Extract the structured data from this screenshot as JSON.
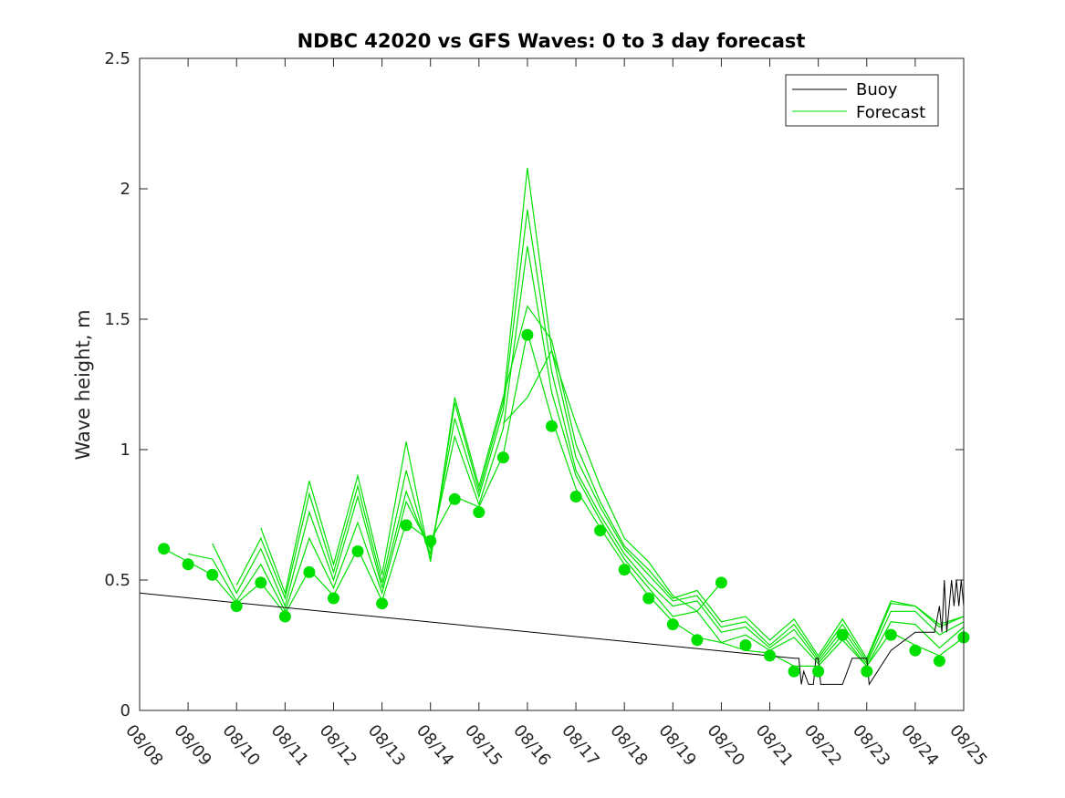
{
  "chart_data": {
    "type": "line",
    "title": "NDBC 42020 vs GFS Waves: 0 to 3 day forecast",
    "xlabel": "",
    "ylabel": "Wave height, m",
    "x_unit": "days since 08/08",
    "xlim": [
      0,
      17
    ],
    "ylim": [
      0,
      2.5
    ],
    "xtick_labels": [
      "08/08",
      "08/09",
      "08/10",
      "08/11",
      "08/12",
      "08/13",
      "08/14",
      "08/15",
      "08/16",
      "08/17",
      "08/18",
      "08/19",
      "08/20",
      "08/21",
      "08/22",
      "08/23",
      "08/24",
      "08/25"
    ],
    "ytick_values": [
      0,
      0.5,
      1,
      1.5,
      2,
      2.5
    ],
    "ytick_labels": [
      "0",
      "0.5",
      "1",
      "1.5",
      "2",
      "2.5"
    ],
    "legend": {
      "position": "top-right",
      "entries": [
        "Buoy",
        "Forecast"
      ]
    },
    "colors": {
      "buoy": "#000000",
      "forecast": "#00e000",
      "axis": "#262626"
    },
    "buoy": {
      "name": "Buoy",
      "x": [
        0,
        13.5,
        13.6,
        13.65,
        13.7,
        13.8,
        13.9,
        13.95,
        14.0,
        14.05,
        14.1,
        14.3,
        14.5,
        14.7,
        14.9,
        15.0,
        15.05,
        15.5,
        16.0,
        16.4,
        16.5,
        16.55,
        16.6,
        16.65,
        16.7,
        16.75,
        16.8,
        16.85,
        16.9,
        16.95,
        17.0
      ],
      "y": [
        0.45,
        0.2,
        0.2,
        0.1,
        0.15,
        0.1,
        0.1,
        0.2,
        0.2,
        0.1,
        0.1,
        0.1,
        0.1,
        0.2,
        0.2,
        0.2,
        0.1,
        0.23,
        0.3,
        0.3,
        0.4,
        0.3,
        0.5,
        0.3,
        0.4,
        0.5,
        0.4,
        0.5,
        0.4,
        0.5,
        0.4
      ]
    },
    "forecast_series": [
      {
        "name": "Forecast run 1",
        "x": [
          0.5,
          1.0,
          1.5,
          2.0,
          2.5,
          3.0,
          3.5,
          4.0,
          4.5,
          5.0,
          5.5,
          6.0,
          6.5,
          7.0,
          7.5,
          8.0,
          8.5,
          9.0,
          9.5,
          10.0,
          10.5,
          11.0,
          11.5,
          12.0,
          12.5,
          13.0,
          13.5,
          14.0,
          14.5,
          15.0,
          15.5,
          16.0,
          16.5,
          17.0
        ],
        "y": [
          0.62,
          0.57,
          0.52,
          0.41,
          0.49,
          0.37,
          0.54,
          0.44,
          0.62,
          0.42,
          0.72,
          0.65,
          0.82,
          0.78,
          0.98,
          1.45,
          1.12,
          0.85,
          0.7,
          0.56,
          0.44,
          0.34,
          0.28,
          0.26,
          0.23,
          0.22,
          0.17,
          0.17,
          0.27,
          0.17,
          0.3,
          0.25,
          0.21,
          0.28
        ]
      },
      {
        "name": "Forecast run 2",
        "x": [
          1.0,
          1.5,
          2.0,
          2.5,
          3.0,
          3.5,
          4.0,
          4.5,
          5.0,
          5.5,
          6.0,
          6.5,
          7.0,
          7.5,
          8.0,
          8.5,
          9.0,
          9.5,
          10.0,
          10.5,
          11.0,
          11.5,
          12.0,
          12.5,
          13.0,
          13.5,
          14.0,
          14.5,
          15.0,
          15.5,
          16.0,
          16.5,
          17.0
        ],
        "y": [
          0.6,
          0.58,
          0.42,
          0.56,
          0.38,
          0.66,
          0.47,
          0.72,
          0.45,
          0.8,
          0.62,
          1.05,
          0.79,
          1.08,
          1.78,
          1.22,
          0.9,
          0.73,
          0.58,
          0.47,
          0.36,
          0.38,
          0.26,
          0.29,
          0.23,
          0.28,
          0.18,
          0.29,
          0.17,
          0.34,
          0.33,
          0.24,
          0.32
        ]
      },
      {
        "name": "Forecast run 3",
        "x": [
          1.5,
          2.0,
          2.5,
          3.0,
          3.5,
          4.0,
          4.5,
          5.0,
          5.5,
          6.0,
          6.5,
          7.0,
          7.5,
          8.0,
          8.5,
          9.0,
          9.5,
          10.0,
          10.5,
          11.0,
          11.5,
          12.0,
          12.5,
          13.0,
          13.5,
          14.0,
          14.5,
          15.0,
          15.5,
          16.0,
          16.5,
          17.0
        ],
        "y": [
          0.64,
          0.45,
          0.62,
          0.4,
          0.76,
          0.5,
          0.82,
          0.47,
          0.84,
          0.6,
          1.12,
          0.82,
          1.15,
          1.92,
          1.3,
          0.92,
          0.75,
          0.6,
          0.49,
          0.4,
          0.42,
          0.3,
          0.32,
          0.24,
          0.31,
          0.19,
          0.31,
          0.18,
          0.38,
          0.38,
          0.29,
          0.34
        ]
      },
      {
        "name": "Forecast run 4",
        "x": [
          2.0,
          2.5,
          3.0,
          3.5,
          4.0,
          4.5,
          5.0,
          5.5,
          6.0,
          6.5,
          7.0,
          7.5,
          8.0,
          8.5,
          9.0,
          9.5,
          10.0,
          10.5,
          11.0,
          11.5,
          12.0,
          12.5,
          13.0,
          13.5,
          14.0,
          14.5,
          15.0,
          15.5,
          16.0,
          16.5,
          17.0
        ],
        "y": [
          0.48,
          0.66,
          0.43,
          0.83,
          0.53,
          0.86,
          0.49,
          0.92,
          0.58,
          1.18,
          0.84,
          1.18,
          2.08,
          1.38,
          0.97,
          0.78,
          0.62,
          0.52,
          0.42,
          0.44,
          0.32,
          0.34,
          0.25,
          0.33,
          0.2,
          0.33,
          0.19,
          0.41,
          0.4,
          0.32,
          0.36
        ]
      },
      {
        "name": "Forecast run 5",
        "x": [
          2.5,
          3.0,
          3.5,
          4.0,
          4.5,
          5.0,
          5.5,
          6.0,
          6.5,
          7.0,
          7.5,
          8.0,
          8.5,
          9.0,
          9.5,
          10.0,
          10.5,
          11.0,
          11.5,
          12.0,
          12.5,
          13.0,
          13.5,
          14.0,
          14.5,
          15.0,
          15.5,
          16.0,
          16.5,
          17.0
        ],
        "y": [
          0.7,
          0.45,
          0.88,
          0.56,
          0.9,
          0.52,
          1.03,
          0.57,
          1.2,
          0.86,
          1.2,
          1.55,
          1.42,
          1.02,
          0.8,
          0.63,
          0.54,
          0.43,
          0.46,
          0.34,
          0.36,
          0.27,
          0.35,
          0.21,
          0.35,
          0.2,
          0.42,
          0.4,
          0.33,
          0.36
        ]
      },
      {
        "name": "Forecast run 6",
        "x": [
          7.5,
          8.0,
          8.5,
          9.0,
          9.5,
          10.0,
          10.5,
          11.0,
          11.5,
          12.0
        ],
        "y": [
          1.1,
          1.2,
          1.38,
          1.1,
          0.86,
          0.66,
          0.57,
          0.44,
          0.38,
          0.49
        ]
      }
    ],
    "forecast_points": {
      "name": "Forecast (markers)",
      "x": [
        0.5,
        1.0,
        1.5,
        2.0,
        2.5,
        3.0,
        3.5,
        4.0,
        4.5,
        5.0,
        5.5,
        6.0,
        6.5,
        7.0,
        7.5,
        8.0,
        8.5,
        9.0,
        9.5,
        10.0,
        10.5,
        11.0,
        11.5,
        12.0,
        12.5,
        13.0,
        13.5,
        14.0,
        14.5,
        15.0,
        15.5,
        16.0,
        16.5,
        17.0
      ],
      "y": [
        0.62,
        0.56,
        0.52,
        0.4,
        0.49,
        0.36,
        0.53,
        0.43,
        0.61,
        0.41,
        0.71,
        0.65,
        0.81,
        0.76,
        0.97,
        1.44,
        1.09,
        0.82,
        0.69,
        0.54,
        0.43,
        0.33,
        0.27,
        0.49,
        0.25,
        0.21,
        0.15,
        0.15,
        0.29,
        0.15,
        0.29,
        0.23,
        0.19,
        0.28
      ]
    }
  }
}
